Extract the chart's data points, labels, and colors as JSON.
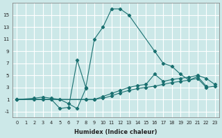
{
  "xlabel": "Humidex (Indice chaleur)",
  "ylabel": "",
  "xlim": [
    -0.5,
    23.5
  ],
  "ylim": [
    -2,
    17
  ],
  "yticks": [
    -1,
    1,
    3,
    5,
    7,
    9,
    11,
    13,
    15
  ],
  "xticks": [
    0,
    1,
    2,
    3,
    4,
    5,
    6,
    7,
    8,
    9,
    10,
    11,
    12,
    13,
    14,
    15,
    16,
    17,
    18,
    19,
    20,
    21,
    22,
    23
  ],
  "bg_color": "#cce8e8",
  "grid_color": "#ffffff",
  "line_color": "#1a7070",
  "line1_x": [
    0,
    2,
    3,
    4,
    5,
    6,
    7,
    8,
    9,
    10,
    11,
    12,
    13,
    16,
    17,
    18,
    19,
    20,
    21,
    22
  ],
  "line1_y": [
    1,
    1,
    1,
    1,
    -0.5,
    -0.3,
    7.5,
    3.0,
    11.0,
    13.0,
    16.0,
    16.0,
    15.0,
    9.0,
    7.0,
    6.5,
    5.2,
    4.2,
    4.8,
    3.2
  ],
  "line2_x": [
    0,
    2,
    3,
    4,
    5,
    6,
    7,
    8
  ],
  "line2_y": [
    1,
    1.2,
    1.4,
    1.2,
    1.0,
    0.3,
    -0.5,
    2.8
  ],
  "line3_x": [
    0,
    8,
    9,
    10,
    11,
    12,
    13,
    14,
    15,
    16,
    17,
    18,
    19,
    20,
    21,
    22,
    23
  ],
  "line3_y": [
    1,
    1,
    1,
    1.5,
    2.0,
    2.5,
    3.0,
    3.3,
    3.5,
    5.2,
    4.0,
    4.3,
    4.5,
    4.7,
    5.0,
    4.5,
    3.5
  ],
  "line4_x": [
    0,
    8,
    9,
    10,
    11,
    12,
    13,
    14,
    15,
    16,
    17,
    18,
    19,
    20,
    21,
    22,
    23
  ],
  "line4_y": [
    1,
    1,
    1,
    1.2,
    1.6,
    2.1,
    2.5,
    2.8,
    3.0,
    3.2,
    3.5,
    3.8,
    4.0,
    4.2,
    4.5,
    3.0,
    3.2
  ]
}
